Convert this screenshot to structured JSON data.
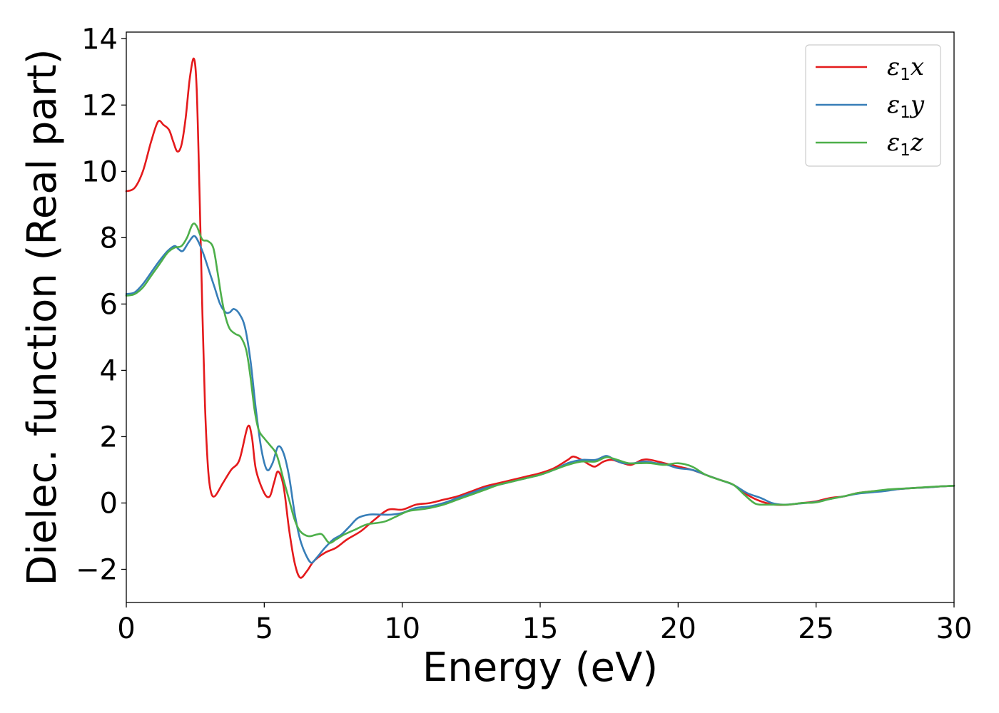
{
  "chart_data": {
    "type": "line",
    "title": "",
    "xlabel": "Energy (eV)",
    "ylabel": "Dielec. function (Real part)",
    "xlim": [
      0,
      30
    ],
    "ylim": [
      -3,
      14.2
    ],
    "xticks": [
      0,
      5,
      10,
      15,
      20,
      25,
      30
    ],
    "xtick_labels": [
      "0",
      "5",
      "10",
      "15",
      "20",
      "25",
      "30"
    ],
    "yticks": [
      -2,
      0,
      2,
      4,
      6,
      8,
      10,
      12,
      14
    ],
    "ytick_labels": [
      "−2",
      "0",
      "2",
      "4",
      "6",
      "8",
      "10",
      "12",
      "14"
    ],
    "grid": false,
    "legend_position": "top-right",
    "series": [
      {
        "name": "ε1x",
        "legend_symbol": "ε",
        "legend_subscript": "1",
        "legend_component": "x",
        "color": "#e41a1c",
        "points": [
          [
            0,
            9.4
          ],
          [
            0.3,
            9.5
          ],
          [
            0.6,
            10.0
          ],
          [
            0.9,
            10.9
          ],
          [
            1.15,
            11.5
          ],
          [
            1.35,
            11.4
          ],
          [
            1.55,
            11.25
          ],
          [
            1.7,
            10.9
          ],
          [
            1.85,
            10.6
          ],
          [
            2.0,
            10.8
          ],
          [
            2.15,
            11.6
          ],
          [
            2.3,
            12.8
          ],
          [
            2.45,
            13.4
          ],
          [
            2.55,
            12.5
          ],
          [
            2.65,
            9.5
          ],
          [
            2.75,
            6.0
          ],
          [
            2.85,
            3.0
          ],
          [
            2.95,
            1.2
          ],
          [
            3.05,
            0.4
          ],
          [
            3.2,
            0.2
          ],
          [
            3.5,
            0.6
          ],
          [
            3.8,
            1.0
          ],
          [
            4.1,
            1.3
          ],
          [
            4.4,
            2.3
          ],
          [
            4.55,
            2.0
          ],
          [
            4.7,
            1.0
          ],
          [
            5.0,
            0.3
          ],
          [
            5.2,
            0.2
          ],
          [
            5.35,
            0.6
          ],
          [
            5.5,
            0.95
          ],
          [
            5.7,
            0.5
          ],
          [
            5.9,
            -0.8
          ],
          [
            6.1,
            -1.8
          ],
          [
            6.3,
            -2.25
          ],
          [
            6.55,
            -2.05
          ],
          [
            6.8,
            -1.75
          ],
          [
            7.2,
            -1.5
          ],
          [
            7.6,
            -1.35
          ],
          [
            8.0,
            -1.1
          ],
          [
            8.5,
            -0.85
          ],
          [
            9.0,
            -0.5
          ],
          [
            9.5,
            -0.2
          ],
          [
            10.0,
            -0.2
          ],
          [
            10.5,
            -0.05
          ],
          [
            11.0,
            0.0
          ],
          [
            11.5,
            0.1
          ],
          [
            12.0,
            0.2
          ],
          [
            12.5,
            0.35
          ],
          [
            13.0,
            0.5
          ],
          [
            13.5,
            0.6
          ],
          [
            14.0,
            0.7
          ],
          [
            14.5,
            0.8
          ],
          [
            15.0,
            0.9
          ],
          [
            15.5,
            1.05
          ],
          [
            16.0,
            1.3
          ],
          [
            16.2,
            1.4
          ],
          [
            16.5,
            1.3
          ],
          [
            16.8,
            1.15
          ],
          [
            17.0,
            1.1
          ],
          [
            17.3,
            1.25
          ],
          [
            17.6,
            1.3
          ],
          [
            18.0,
            1.2
          ],
          [
            18.3,
            1.15
          ],
          [
            18.7,
            1.3
          ],
          [
            19.0,
            1.3
          ],
          [
            19.5,
            1.2
          ],
          [
            20.0,
            1.1
          ],
          [
            20.5,
            1.0
          ],
          [
            21.0,
            0.85
          ],
          [
            21.5,
            0.7
          ],
          [
            22.0,
            0.55
          ],
          [
            22.5,
            0.25
          ],
          [
            23.0,
            0.05
          ],
          [
            23.5,
            -0.05
          ],
          [
            24.0,
            -0.05
          ],
          [
            24.5,
            0.0
          ],
          [
            25.0,
            0.05
          ],
          [
            25.5,
            0.15
          ],
          [
            26.0,
            0.2
          ],
          [
            26.5,
            0.3
          ],
          [
            27.0,
            0.35
          ],
          [
            27.5,
            0.38
          ],
          [
            28.0,
            0.42
          ],
          [
            28.5,
            0.45
          ],
          [
            29.0,
            0.47
          ],
          [
            29.5,
            0.5
          ],
          [
            30.0,
            0.52
          ]
        ]
      },
      {
        "name": "ε1y",
        "legend_symbol": "ε",
        "legend_subscript": "1",
        "legend_component": "y",
        "color": "#377eb8",
        "points": [
          [
            0,
            6.3
          ],
          [
            0.3,
            6.35
          ],
          [
            0.6,
            6.6
          ],
          [
            0.9,
            6.95
          ],
          [
            1.2,
            7.3
          ],
          [
            1.5,
            7.6
          ],
          [
            1.75,
            7.75
          ],
          [
            1.9,
            7.65
          ],
          [
            2.05,
            7.6
          ],
          [
            2.25,
            7.85
          ],
          [
            2.45,
            8.05
          ],
          [
            2.6,
            7.9
          ],
          [
            2.8,
            7.5
          ],
          [
            3.0,
            7.0
          ],
          [
            3.2,
            6.5
          ],
          [
            3.4,
            6.0
          ],
          [
            3.6,
            5.75
          ],
          [
            3.75,
            5.75
          ],
          [
            3.9,
            5.85
          ],
          [
            4.1,
            5.7
          ],
          [
            4.3,
            5.3
          ],
          [
            4.5,
            4.3
          ],
          [
            4.7,
            2.8
          ],
          [
            4.9,
            1.6
          ],
          [
            5.1,
            1.0
          ],
          [
            5.3,
            1.2
          ],
          [
            5.5,
            1.7
          ],
          [
            5.7,
            1.5
          ],
          [
            5.9,
            0.8
          ],
          [
            6.1,
            -0.3
          ],
          [
            6.3,
            -1.1
          ],
          [
            6.5,
            -1.55
          ],
          [
            6.7,
            -1.8
          ],
          [
            6.9,
            -1.65
          ],
          [
            7.2,
            -1.35
          ],
          [
            7.5,
            -1.1
          ],
          [
            7.8,
            -0.95
          ],
          [
            8.1,
            -0.7
          ],
          [
            8.4,
            -0.45
          ],
          [
            8.8,
            -0.35
          ],
          [
            9.2,
            -0.35
          ],
          [
            9.6,
            -0.35
          ],
          [
            10.0,
            -0.3
          ],
          [
            10.5,
            -0.15
          ],
          [
            11.0,
            -0.1
          ],
          [
            11.5,
            0.0
          ],
          [
            12.0,
            0.15
          ],
          [
            12.5,
            0.3
          ],
          [
            13.0,
            0.45
          ],
          [
            13.5,
            0.55
          ],
          [
            14.0,
            0.65
          ],
          [
            14.5,
            0.75
          ],
          [
            15.0,
            0.85
          ],
          [
            15.5,
            1.0
          ],
          [
            16.0,
            1.2
          ],
          [
            16.5,
            1.3
          ],
          [
            17.0,
            1.3
          ],
          [
            17.4,
            1.42
          ],
          [
            17.7,
            1.3
          ],
          [
            18.0,
            1.2
          ],
          [
            18.4,
            1.2
          ],
          [
            18.8,
            1.25
          ],
          [
            19.2,
            1.2
          ],
          [
            19.6,
            1.15
          ],
          [
            20.0,
            1.05
          ],
          [
            20.5,
            1.0
          ],
          [
            21.0,
            0.85
          ],
          [
            21.5,
            0.7
          ],
          [
            22.0,
            0.55
          ],
          [
            22.5,
            0.3
          ],
          [
            23.0,
            0.15
          ],
          [
            23.4,
            0.0
          ],
          [
            23.8,
            -0.05
          ],
          [
            24.2,
            -0.03
          ],
          [
            24.6,
            0.0
          ],
          [
            25.0,
            0.03
          ],
          [
            25.5,
            0.12
          ],
          [
            26.0,
            0.2
          ],
          [
            26.5,
            0.28
          ],
          [
            27.0,
            0.32
          ],
          [
            27.5,
            0.36
          ],
          [
            28.0,
            0.42
          ],
          [
            28.5,
            0.45
          ],
          [
            29.0,
            0.47
          ],
          [
            29.5,
            0.5
          ],
          [
            30.0,
            0.52
          ]
        ]
      },
      {
        "name": "ε1z",
        "legend_symbol": "ε",
        "legend_subscript": "1",
        "legend_component": "z",
        "color": "#4daf4a",
        "points": [
          [
            0,
            6.25
          ],
          [
            0.3,
            6.3
          ],
          [
            0.6,
            6.5
          ],
          [
            0.9,
            6.85
          ],
          [
            1.2,
            7.2
          ],
          [
            1.5,
            7.55
          ],
          [
            1.75,
            7.7
          ],
          [
            2.0,
            7.75
          ],
          [
            2.2,
            8.0
          ],
          [
            2.4,
            8.4
          ],
          [
            2.55,
            8.35
          ],
          [
            2.75,
            7.95
          ],
          [
            2.95,
            7.9
          ],
          [
            3.15,
            7.7
          ],
          [
            3.3,
            7.0
          ],
          [
            3.45,
            6.2
          ],
          [
            3.6,
            5.6
          ],
          [
            3.75,
            5.25
          ],
          [
            3.95,
            5.1
          ],
          [
            4.15,
            5.0
          ],
          [
            4.35,
            4.6
          ],
          [
            4.5,
            3.8
          ],
          [
            4.65,
            2.8
          ],
          [
            4.8,
            2.2
          ],
          [
            5.0,
            1.95
          ],
          [
            5.2,
            1.75
          ],
          [
            5.45,
            1.45
          ],
          [
            5.7,
            0.7
          ],
          [
            5.9,
            0.1
          ],
          [
            6.1,
            -0.5
          ],
          [
            6.3,
            -0.85
          ],
          [
            6.6,
            -1.0
          ],
          [
            6.9,
            -0.95
          ],
          [
            7.1,
            -0.95
          ],
          [
            7.35,
            -1.2
          ],
          [
            7.6,
            -1.1
          ],
          [
            7.9,
            -0.95
          ],
          [
            8.3,
            -0.8
          ],
          [
            8.7,
            -0.65
          ],
          [
            9.1,
            -0.6
          ],
          [
            9.4,
            -0.55
          ],
          [
            9.8,
            -0.4
          ],
          [
            10.2,
            -0.25
          ],
          [
            10.6,
            -0.2
          ],
          [
            11.0,
            -0.15
          ],
          [
            11.5,
            -0.05
          ],
          [
            12.0,
            0.1
          ],
          [
            12.5,
            0.25
          ],
          [
            13.0,
            0.4
          ],
          [
            13.5,
            0.55
          ],
          [
            14.0,
            0.65
          ],
          [
            14.5,
            0.75
          ],
          [
            15.0,
            0.85
          ],
          [
            15.5,
            1.0
          ],
          [
            16.0,
            1.15
          ],
          [
            16.5,
            1.25
          ],
          [
            17.0,
            1.25
          ],
          [
            17.4,
            1.38
          ],
          [
            17.8,
            1.3
          ],
          [
            18.2,
            1.2
          ],
          [
            18.6,
            1.2
          ],
          [
            19.0,
            1.2
          ],
          [
            19.5,
            1.15
          ],
          [
            20.0,
            1.2
          ],
          [
            20.5,
            1.1
          ],
          [
            21.0,
            0.85
          ],
          [
            21.5,
            0.7
          ],
          [
            22.0,
            0.55
          ],
          [
            22.4,
            0.25
          ],
          [
            22.8,
            -0.02
          ],
          [
            23.2,
            -0.05
          ],
          [
            23.6,
            -0.05
          ],
          [
            24.0,
            -0.05
          ],
          [
            24.5,
            0.0
          ],
          [
            25.0,
            0.02
          ],
          [
            25.5,
            0.12
          ],
          [
            26.0,
            0.2
          ],
          [
            26.5,
            0.3
          ],
          [
            27.0,
            0.35
          ],
          [
            27.5,
            0.4
          ],
          [
            28.0,
            0.43
          ],
          [
            28.5,
            0.45
          ],
          [
            29.0,
            0.48
          ],
          [
            29.5,
            0.5
          ],
          [
            30.0,
            0.52
          ]
        ]
      }
    ]
  }
}
